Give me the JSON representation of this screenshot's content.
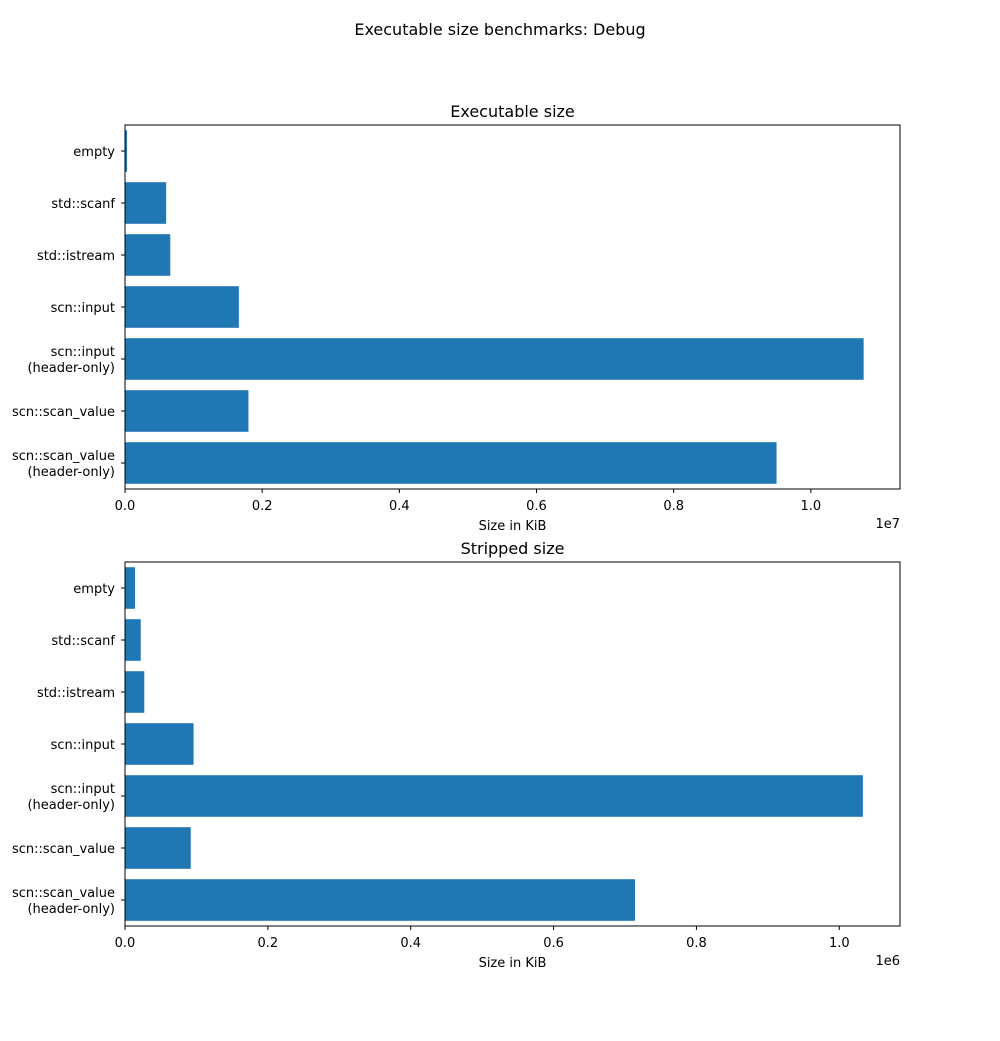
{
  "suptitle": "Executable size benchmarks: Debug",
  "colors": {
    "bar": "#1f77b4"
  },
  "chart_data": [
    {
      "type": "bar",
      "orientation": "horizontal",
      "title": "Executable size",
      "xlabel": "Size in KiB",
      "ylabel": "",
      "axis_offset_label": "1e7",
      "xlim": [
        0,
        11300000
      ],
      "grid": false,
      "xticks": [
        0,
        2000000,
        4000000,
        6000000,
        8000000,
        10000000
      ],
      "xtick_labels": [
        "0.0",
        "0.2",
        "0.4",
        "0.6",
        "0.8",
        "1.0"
      ],
      "categories": [
        [
          "empty"
        ],
        [
          "std::scanf"
        ],
        [
          "std::istream"
        ],
        [
          "scn::input"
        ],
        [
          "scn::input",
          "(header-only)"
        ],
        [
          "scn::scan_value"
        ],
        [
          "scn::scan_value",
          "(header-only)"
        ]
      ],
      "values": [
        30000,
        600000,
        660000,
        1660000,
        10770000,
        1800000,
        9500000
      ]
    },
    {
      "type": "bar",
      "orientation": "horizontal",
      "title": "Stripped size",
      "xlabel": "Size in KiB",
      "ylabel": "",
      "axis_offset_label": "1e6",
      "xlim": [
        0,
        1085000
      ],
      "grid": false,
      "xticks": [
        0,
        200000,
        400000,
        600000,
        800000,
        1000000
      ],
      "xtick_labels": [
        "0.0",
        "0.2",
        "0.4",
        "0.6",
        "0.8",
        "1.0"
      ],
      "categories": [
        [
          "empty"
        ],
        [
          "std::scanf"
        ],
        [
          "std::istream"
        ],
        [
          "scn::input"
        ],
        [
          "scn::input",
          "(header-only)"
        ],
        [
          "scn::scan_value"
        ],
        [
          "scn::scan_value",
          "(header-only)"
        ]
      ],
      "values": [
        14000,
        22000,
        27000,
        96000,
        1033000,
        92000,
        714000
      ]
    }
  ]
}
